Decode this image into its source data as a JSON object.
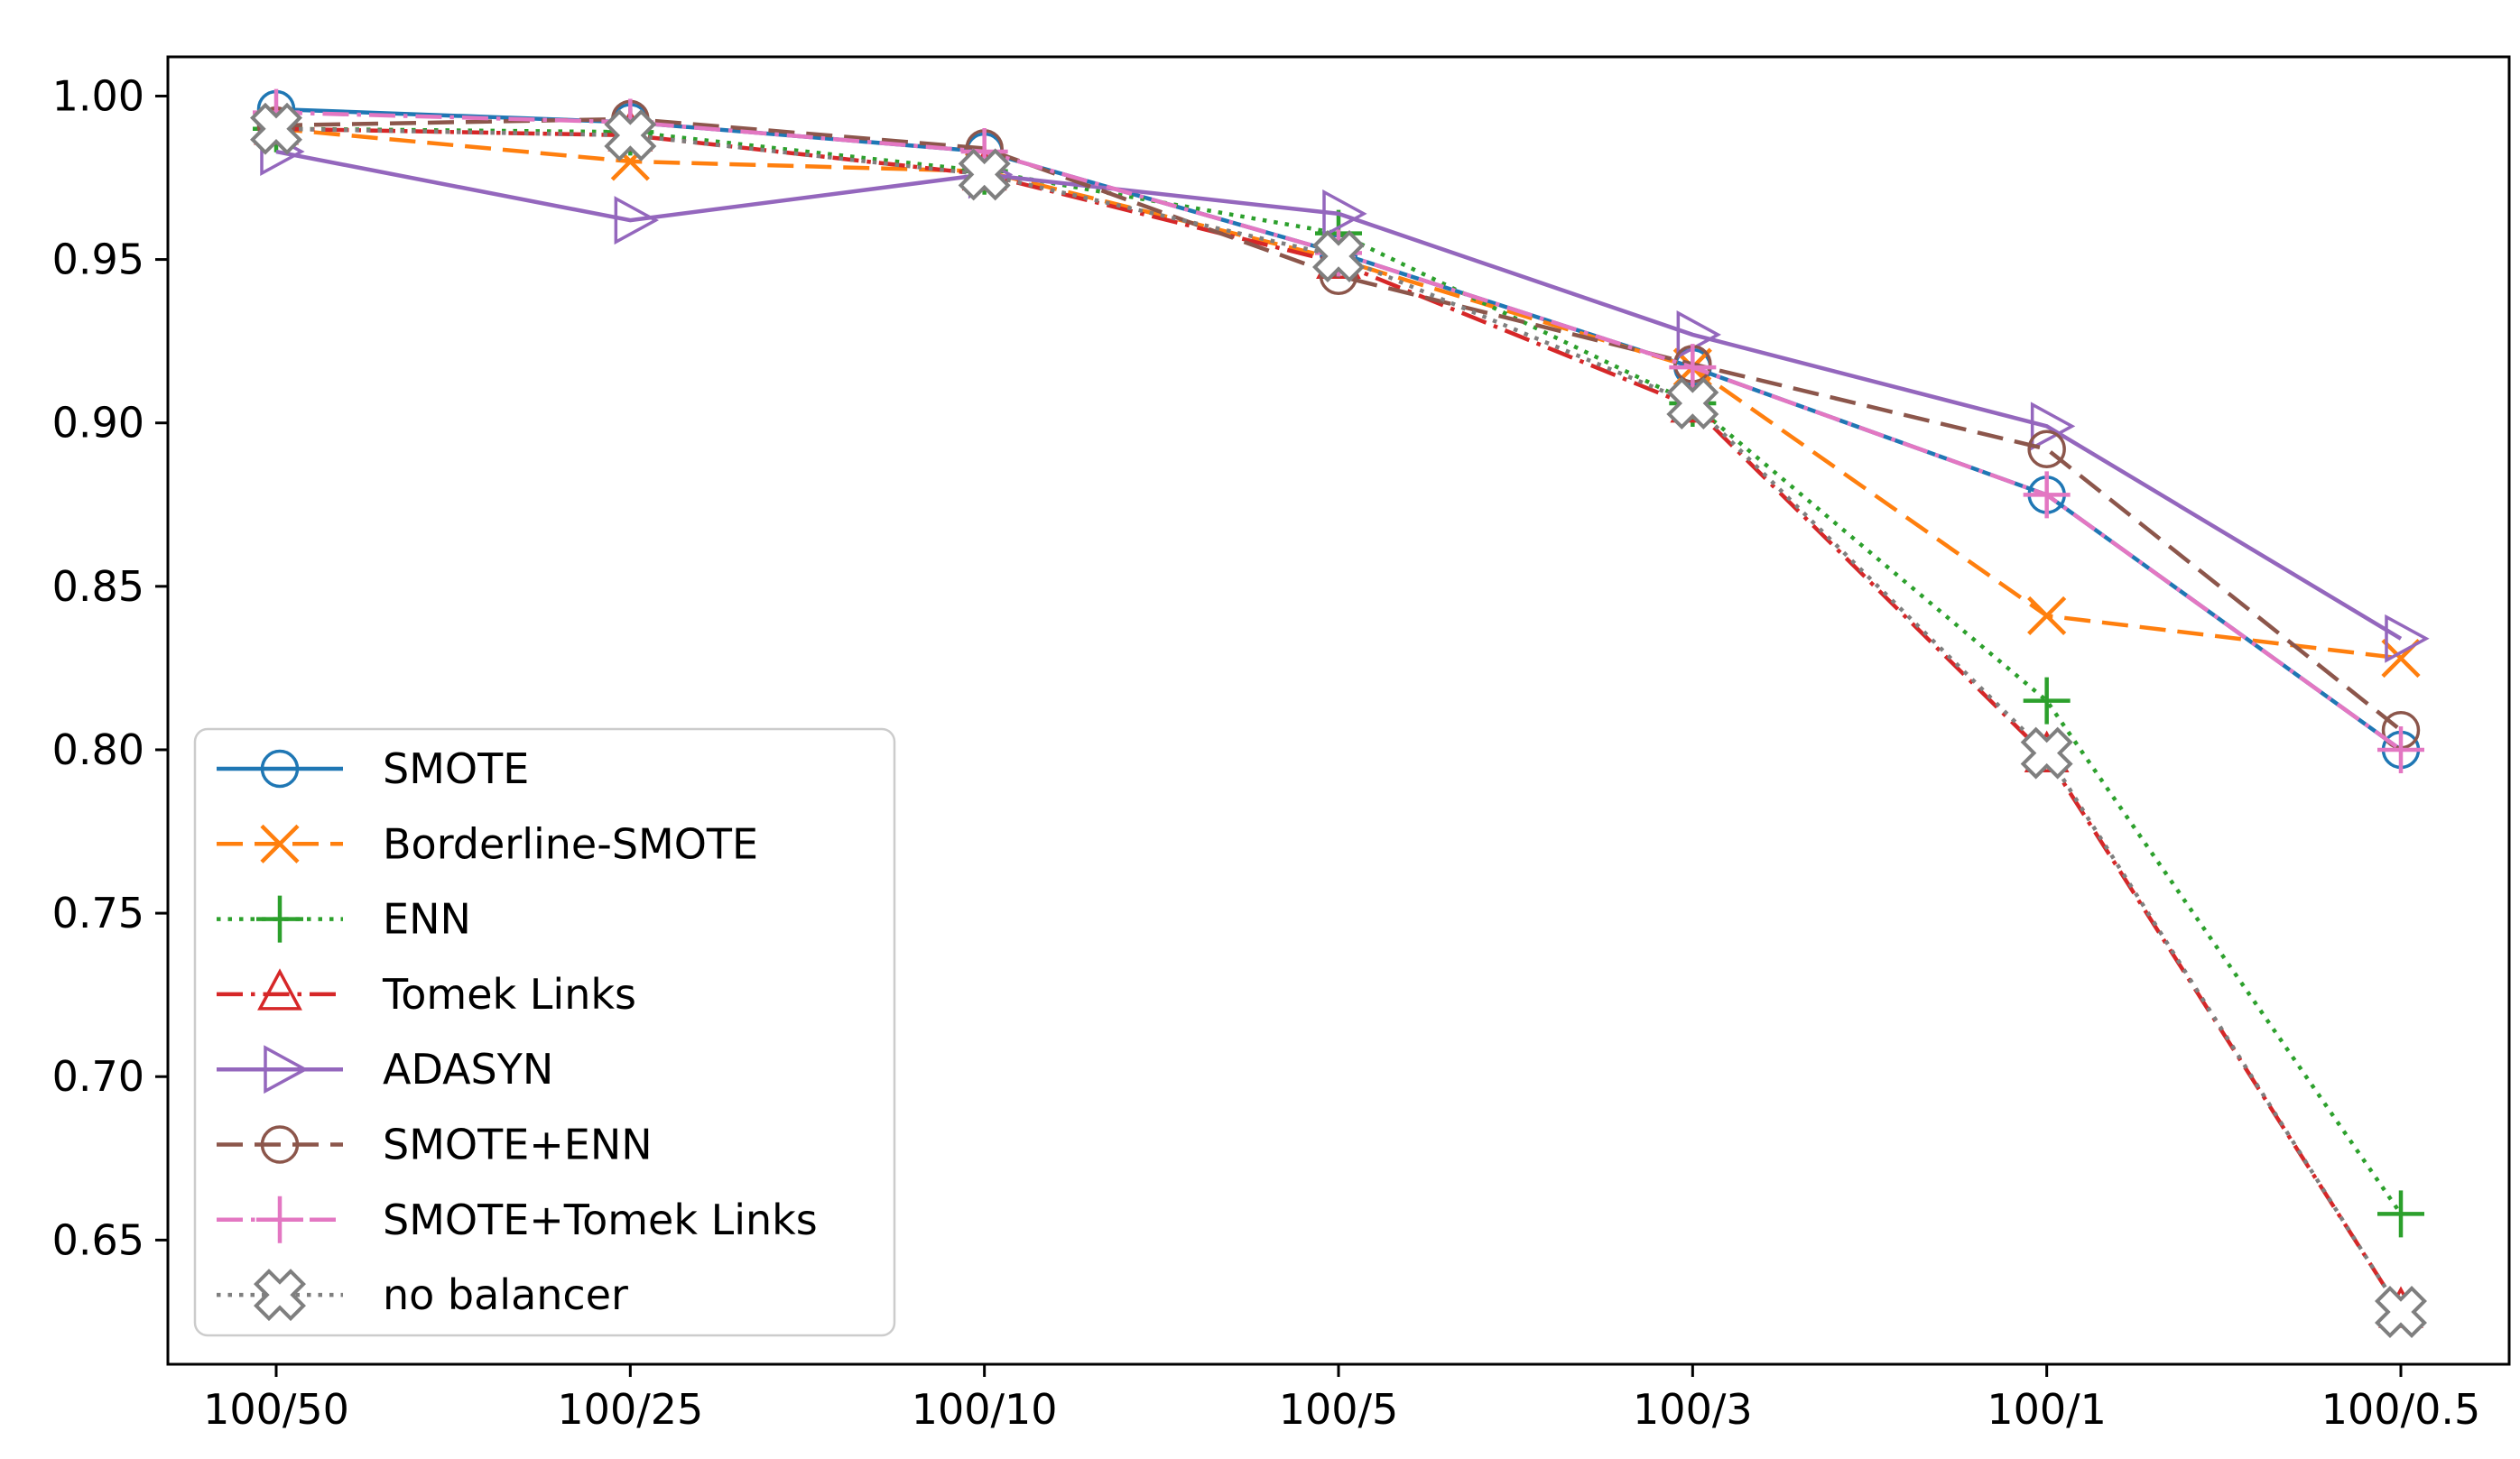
{
  "page": {
    "background": "#ffffff",
    "description": "Line chart comparing class-balancing methods across imbalance ratios"
  },
  "chart_data": {
    "type": "line",
    "title": "",
    "xlabel": "",
    "ylabel": "",
    "grid": false,
    "background": "#ffffff",
    "frame_color": "#000000",
    "categories": [
      "100/50",
      "100/25",
      "100/10",
      "100/5",
      "100/3",
      "100/1",
      "100/0.5"
    ],
    "ylim": [
      0.612,
      1.012
    ],
    "yticks": [
      1.0,
      0.95,
      0.9,
      0.85,
      0.8,
      0.75,
      0.7,
      0.65
    ],
    "ytick_labels": [
      "1.00",
      "0.95",
      "0.90",
      "0.85",
      "0.80",
      "0.75",
      "0.70",
      "0.65"
    ],
    "legend": {
      "visible": true,
      "location": "lower left",
      "border_color": "#cccccc",
      "fill": "#ffffff"
    },
    "series": [
      {
        "name": "SMOTE",
        "color": "#1f77b4",
        "linestyle": "solid",
        "marker": "circle",
        "values": [
          0.996,
          0.992,
          0.983,
          0.952,
          0.917,
          0.878,
          0.8
        ]
      },
      {
        "name": "Borderline-SMOTE",
        "color": "#ff7f0e",
        "linestyle": "dashed",
        "marker": "x",
        "values": [
          0.99,
          0.98,
          0.977,
          0.95,
          0.917,
          0.841,
          0.828
        ]
      },
      {
        "name": "ENN",
        "color": "#2ca02c",
        "linestyle": "dotted",
        "marker": "plus",
        "values": [
          0.99,
          0.989,
          0.977,
          0.958,
          0.906,
          0.815,
          0.658
        ]
      },
      {
        "name": "Tomek Links",
        "color": "#d62728",
        "linestyle": "dashdot",
        "marker": "triangle-up",
        "values": [
          0.99,
          0.988,
          0.976,
          0.949,
          0.905,
          0.798,
          0.628
        ]
      },
      {
        "name": "ADASYN",
        "color": "#9467bd",
        "linestyle": "solid",
        "marker": "triangle-right",
        "values": [
          0.983,
          0.962,
          0.976,
          0.964,
          0.927,
          0.899,
          0.834
        ]
      },
      {
        "name": "SMOTE+ENN",
        "color": "#8c564b",
        "linestyle": "dashed",
        "marker": "circle",
        "values": [
          0.991,
          0.993,
          0.984,
          0.945,
          0.918,
          0.892,
          0.806
        ]
      },
      {
        "name": "SMOTE+Tomek Links",
        "color": "#e377c2",
        "linestyle": "dashdot",
        "marker": "plus",
        "values": [
          0.995,
          0.992,
          0.983,
          0.952,
          0.917,
          0.878,
          0.8
        ]
      },
      {
        "name": "no balancer",
        "color": "#7f7f7f",
        "linestyle": "dotted",
        "marker": "x-open",
        "values": [
          0.99,
          0.988,
          0.976,
          0.951,
          0.906,
          0.799,
          0.628
        ]
      }
    ]
  }
}
